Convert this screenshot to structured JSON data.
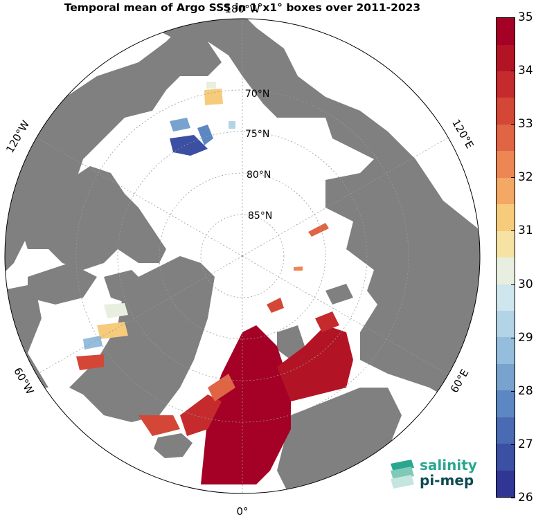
{
  "title": "Temporal mean of Argo SSS in 1°x1° boxes over 2011-2023",
  "map": {
    "projection": "north-polar-stereographic",
    "land_color": "#808080",
    "ocean_color": "#ffffff",
    "grid_color": "#999999",
    "longitude_labels": {
      "top": "180°W",
      "top_left": "120°W",
      "top_right": "120°E",
      "bottom_left": "60°W",
      "bottom_right": "60°E",
      "bottom": "0°"
    },
    "latitude_labels": [
      "70°N",
      "75°N",
      "80°N",
      "85°N"
    ]
  },
  "colorbar": {
    "min": 26,
    "max": 35,
    "ticks": [
      "35",
      "34",
      "33",
      "32",
      "31",
      "30",
      "29",
      "28",
      "27",
      "26"
    ],
    "colors": [
      "#313695",
      "#3b4fa3",
      "#4a6bb3",
      "#5d87c2",
      "#79a3cf",
      "#95bddc",
      "#b3d3e6",
      "#d0e6ee",
      "#e9efe0",
      "#f6e3a3",
      "#f7cb7c",
      "#f3a865",
      "#ec8653",
      "#e06544",
      "#d44736",
      "#c52b2c",
      "#b31425",
      "#a50026"
    ]
  },
  "logo": {
    "line1": "salinity",
    "line2": "pi-mep",
    "colors": [
      "#2aa68f",
      "#0d4b52"
    ]
  }
}
